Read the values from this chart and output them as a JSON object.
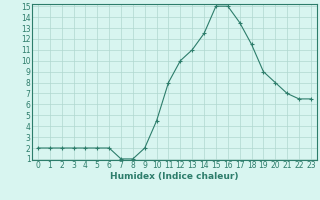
{
  "x": [
    0,
    1,
    2,
    3,
    4,
    5,
    6,
    7,
    8,
    9,
    10,
    11,
    12,
    13,
    14,
    15,
    16,
    17,
    18,
    19,
    20,
    21,
    22,
    23
  ],
  "y": [
    2,
    2,
    2,
    2,
    2,
    2,
    2,
    1,
    1,
    2,
    4.5,
    8,
    10,
    11,
    12.5,
    15,
    15,
    13.5,
    11.5,
    9,
    8,
    7,
    6.5,
    6.5
  ],
  "line_color": "#2d7d6b",
  "marker": "+",
  "bg_color": "#d8f5f0",
  "grid_color": "#b0d8d0",
  "xlabel": "Humidex (Indice chaleur)",
  "ylim": [
    1,
    15
  ],
  "xlim": [
    -0.5,
    23.5
  ],
  "yticks": [
    1,
    2,
    3,
    4,
    5,
    6,
    7,
    8,
    9,
    10,
    11,
    12,
    13,
    14,
    15
  ],
  "xticks": [
    0,
    1,
    2,
    3,
    4,
    5,
    6,
    7,
    8,
    9,
    10,
    11,
    12,
    13,
    14,
    15,
    16,
    17,
    18,
    19,
    20,
    21,
    22,
    23
  ],
  "title_fontsize": 6.5,
  "label_fontsize": 6.5,
  "tick_fontsize": 5.5
}
